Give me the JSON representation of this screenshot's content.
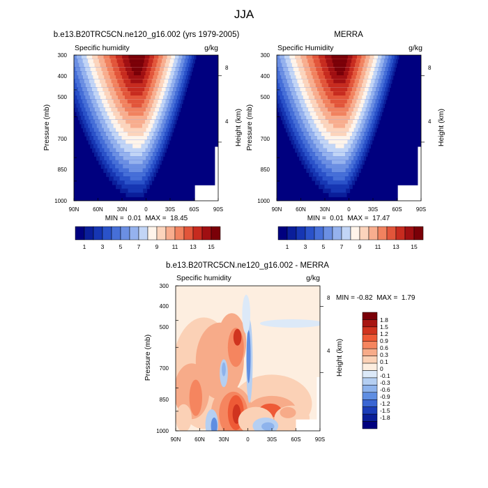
{
  "figure_title": "JJA",
  "chart_data": [
    {
      "type": "heatmap",
      "title": "b.e13.B20TRC5CN.ne120_g16.002 (yrs 1979-2005)",
      "subtitle_left": "Specific humidity",
      "units": "g/kg",
      "ylabel": "Pressure (mb)",
      "ylabel_right": "Height (km)",
      "x_ticks": [
        "90N",
        "60N",
        "30N",
        "0",
        "30S",
        "60S",
        "90S"
      ],
      "y_ticks": [
        "300",
        "400",
        "500",
        "700",
        "850",
        "1000"
      ],
      "right_ticks": [
        "8",
        "4"
      ],
      "stats_text": "MIN =  0.01  MAX =  18.45",
      "min": 0.01,
      "max": 18.45,
      "xlim": [
        90,
        -90
      ],
      "ylim": [
        1000,
        300
      ],
      "peak_lat": 10,
      "colorbar": {
        "orientation": "horizontal",
        "labels": [
          "1",
          "3",
          "5",
          "7",
          "9",
          "11",
          "13",
          "15"
        ],
        "colors": [
          "#00007f",
          "#0a1e9a",
          "#1636b3",
          "#2a52c9",
          "#466fd8",
          "#6b8fe3",
          "#95b2ee",
          "#c2d5f6",
          "#fff4ea",
          "#fcd4bc",
          "#f8ad8e",
          "#f1825f",
          "#e2553a",
          "#c72b1f",
          "#a00f12",
          "#7a0008"
        ]
      }
    },
    {
      "type": "heatmap",
      "title": "MERRA",
      "subtitle_left": "Specific Humidity",
      "units": "g/kg",
      "ylabel": "Pressure (mb)",
      "ylabel_right": "Height (km)",
      "x_ticks": [
        "90N",
        "60N",
        "30N",
        "0",
        "30S",
        "60S",
        "90S"
      ],
      "y_ticks": [
        "300",
        "400",
        "500",
        "700",
        "850",
        "1000"
      ],
      "right_ticks": [
        "8",
        "4"
      ],
      "stats_text": "MIN =  0.01  MAX =  17.47",
      "min": 0.01,
      "max": 17.47,
      "xlim": [
        90,
        -90
      ],
      "ylim": [
        1000,
        300
      ],
      "peak_lat": 10,
      "colorbar": {
        "orientation": "horizontal",
        "labels": [
          "1",
          "3",
          "5",
          "7",
          "9",
          "11",
          "13",
          "15"
        ],
        "colors": [
          "#00007f",
          "#0a1e9a",
          "#1636b3",
          "#2a52c9",
          "#466fd8",
          "#6b8fe3",
          "#95b2ee",
          "#c2d5f6",
          "#fff4ea",
          "#fcd4bc",
          "#f8ad8e",
          "#f1825f",
          "#e2553a",
          "#c72b1f",
          "#a00f12",
          "#7a0008"
        ]
      }
    },
    {
      "type": "heatmap",
      "title": "b.e13.B20TRC5CN.ne120_g16.002 - MERRA",
      "subtitle_left": "Specific humidity",
      "units": "g/kg",
      "ylabel": "Pressure (mb)",
      "ylabel_right": "Height (km)",
      "x_ticks": [
        "90N",
        "60N",
        "30N",
        "0",
        "30S",
        "60S",
        "90S"
      ],
      "y_ticks": [
        "300",
        "400",
        "500",
        "700",
        "850",
        "1000"
      ],
      "right_ticks": [
        "8",
        "4"
      ],
      "stats_text": "MIN = -0.82  MAX =  1.79",
      "min": -0.82,
      "max": 1.79,
      "xlim": [
        90,
        -90
      ],
      "ylim": [
        1000,
        300
      ],
      "colorbar": {
        "orientation": "vertical",
        "labels": [
          "1.8",
          "1.5",
          "1.2",
          "0.9",
          "0.6",
          "0.3",
          "0.1",
          "0",
          "-0.1",
          "-0.3",
          "-0.6",
          "-0.9",
          "-1.2",
          "-1.5",
          "-1.8"
        ],
        "colors": [
          "#7a0008",
          "#a81612",
          "#d0341f",
          "#ee5a36",
          "#f5855f",
          "#f7ab89",
          "#fbd1b6",
          "#fdeee0",
          "#dce9f8",
          "#b5cff2",
          "#8eb3ec",
          "#5f8ee2",
          "#3a66d3",
          "#1b3db8",
          "#0a1e98",
          "#00007f"
        ]
      }
    }
  ]
}
